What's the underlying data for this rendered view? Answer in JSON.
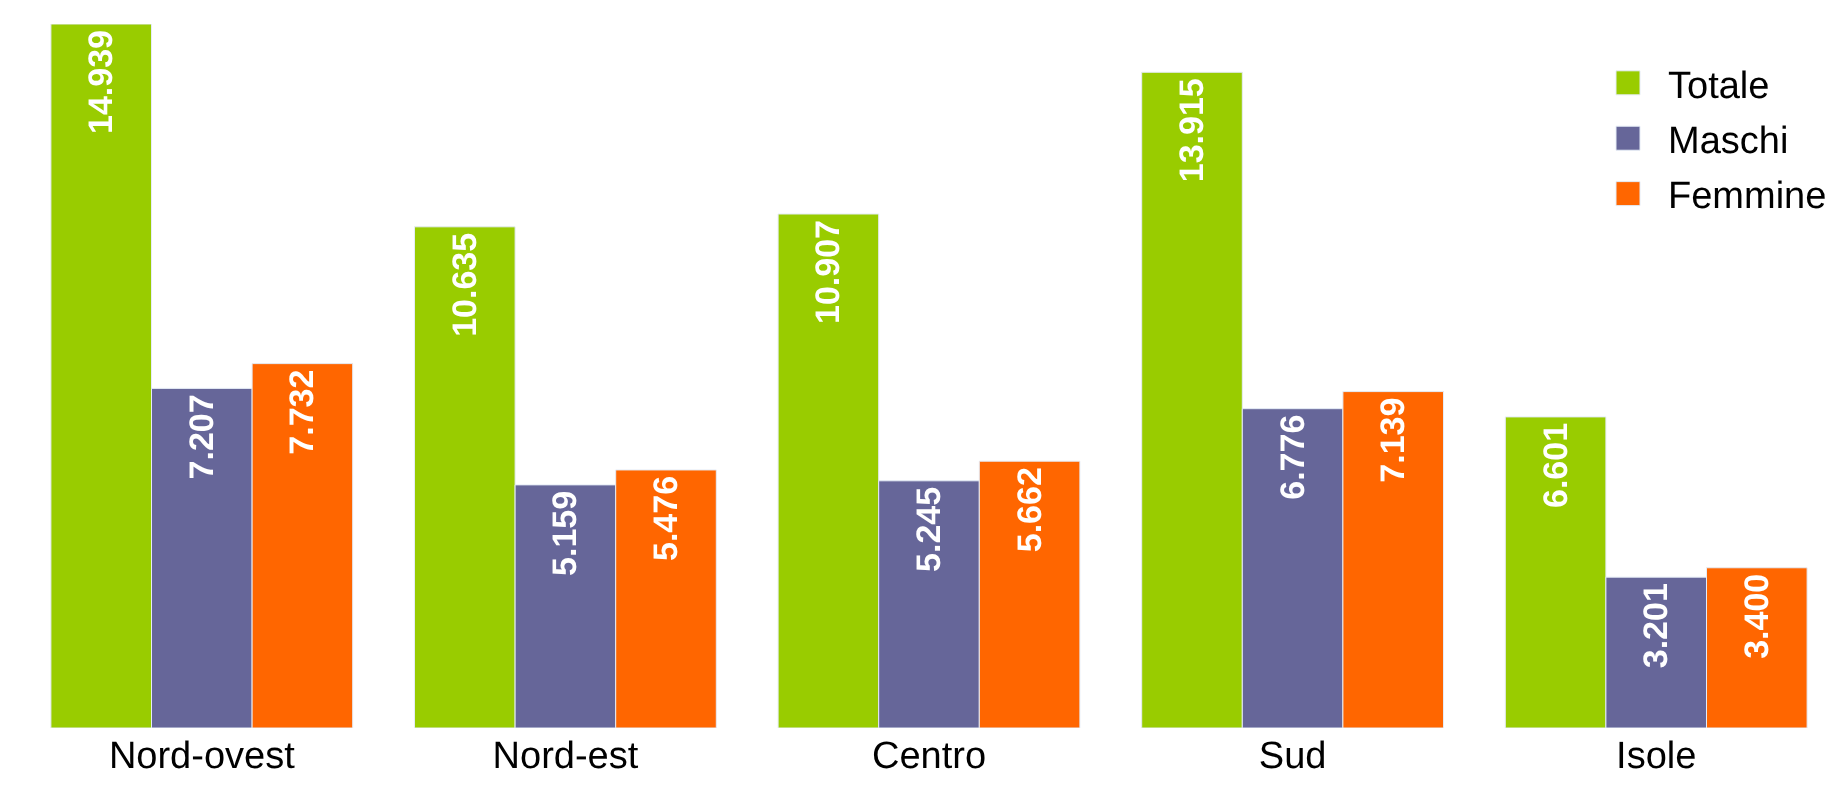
{
  "chart_data": {
    "type": "bar",
    "categories": [
      "Nord-ovest",
      "Nord-est",
      "Centro",
      "Sud",
      "Isole"
    ],
    "series": [
      {
        "name": "Totale",
        "color": "#99cc00",
        "values": [
          14939,
          10635,
          10907,
          13915,
          6601
        ],
        "value_labels": [
          "14.939",
          "10.635",
          "10.907",
          "13.915",
          "6.601"
        ]
      },
      {
        "name": "Maschi",
        "color": "#666699",
        "values": [
          7207,
          5159,
          5245,
          6776,
          3201
        ],
        "value_labels": [
          "7.207",
          "5.159",
          "5.245",
          "6.776",
          "3.201"
        ]
      },
      {
        "name": "Femmine",
        "color": "#ff6600",
        "values": [
          7732,
          5476,
          5662,
          7139,
          3400
        ],
        "value_labels": [
          "7.732",
          "5.476",
          "5.662",
          "7.139",
          "3.400"
        ]
      }
    ],
    "legend": "top right"
  }
}
